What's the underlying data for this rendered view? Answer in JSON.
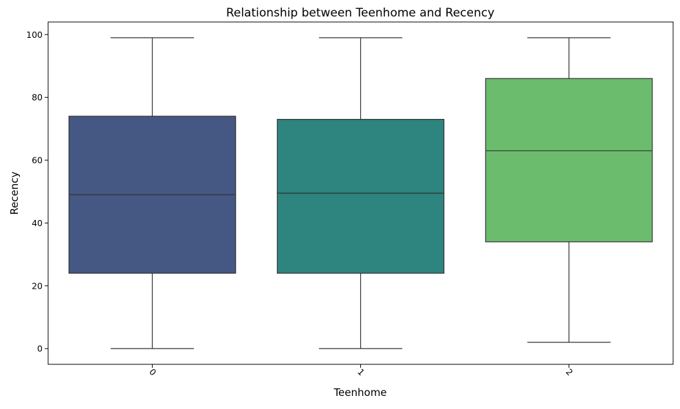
{
  "chart_data": {
    "type": "box",
    "title": "Relationship between Teenhome and Recency",
    "xlabel": "Teenhome",
    "ylabel": "Recency",
    "categories": [
      "0",
      "1",
      "2"
    ],
    "ylim": [
      -5,
      104
    ],
    "yticks": [
      0,
      20,
      40,
      60,
      80,
      100
    ],
    "grid": false,
    "boxes": [
      {
        "category": "0",
        "whisker_low": 0,
        "q1": 24,
        "median": 49,
        "q3": 74,
        "whisker_high": 99,
        "color": "#455883"
      },
      {
        "category": "1",
        "whisker_low": 0,
        "q1": 24,
        "median": 49.5,
        "q3": 73,
        "whisker_high": 99,
        "color": "#2e847e"
      },
      {
        "category": "2",
        "whisker_low": 2,
        "q1": 34,
        "median": 63,
        "q3": 86,
        "whisker_high": 99,
        "color": "#6bbc6d"
      }
    ],
    "line_color": "#333333"
  }
}
